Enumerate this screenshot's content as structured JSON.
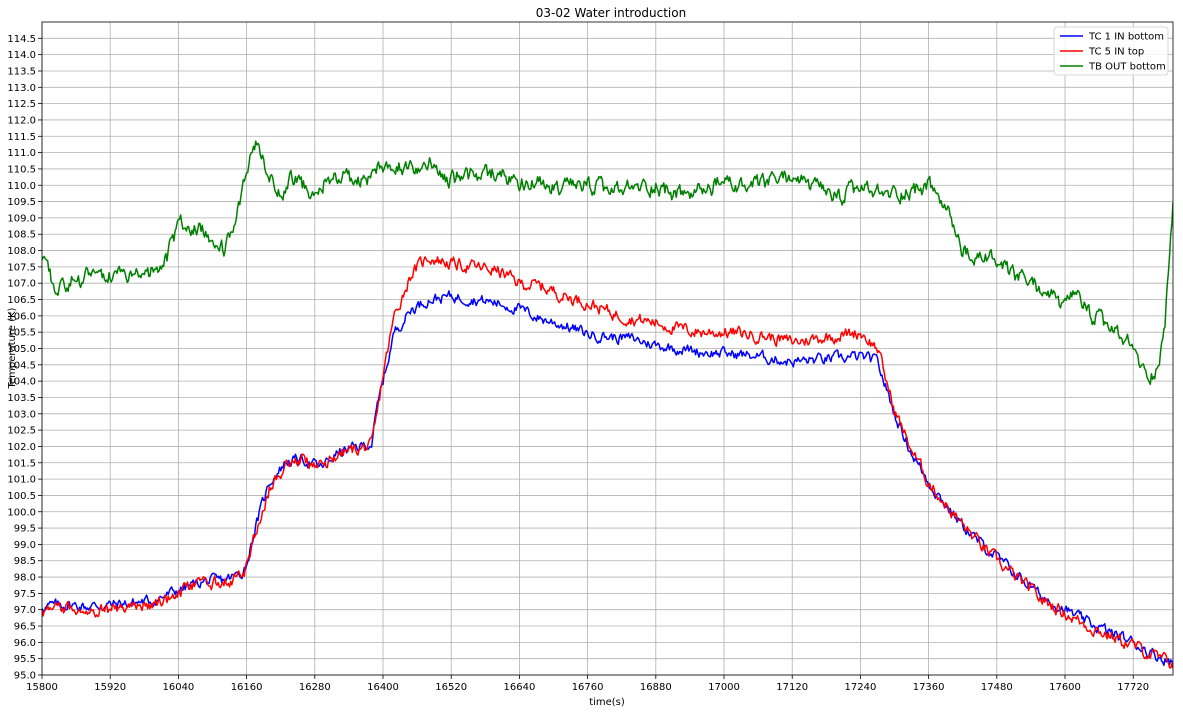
{
  "chart_data": {
    "type": "line",
    "title": "03-02 Water introduction",
    "xlabel": "time(s)",
    "ylabel": "Temperature (K)",
    "xlim": [
      15800,
      17790
    ],
    "ylim": [
      95.0,
      115.0
    ],
    "xticks": [
      15800,
      15920,
      16040,
      16160,
      16280,
      16400,
      16520,
      16640,
      16760,
      16880,
      17000,
      17120,
      17240,
      17360,
      17480,
      17600,
      17720
    ],
    "yticks": [
      95.0,
      95.5,
      96.0,
      96.5,
      97.0,
      97.5,
      98.0,
      98.5,
      99.0,
      99.5,
      100.0,
      100.5,
      101.0,
      101.5,
      102.0,
      102.5,
      103.0,
      103.5,
      104.0,
      104.5,
      105.0,
      105.5,
      106.0,
      106.5,
      107.0,
      107.5,
      108.0,
      108.5,
      109.0,
      109.5,
      110.0,
      110.5,
      111.0,
      111.5,
      112.0,
      112.5,
      113.0,
      113.5,
      114.0,
      114.5
    ],
    "grid": true,
    "legend_position": "top-right",
    "series": [
      {
        "name": "TC 1 IN bottom",
        "color": "#0000ff",
        "x": [
          15800,
          15840,
          15880,
          15920,
          15960,
          16000,
          16040,
          16080,
          16120,
          16150,
          16160,
          16175,
          16200,
          16230,
          16260,
          16290,
          16320,
          16350,
          16380,
          16390,
          16400,
          16420,
          16450,
          16480,
          16520,
          16560,
          16600,
          16640,
          16680,
          16720,
          16760,
          16800,
          16840,
          16880,
          16920,
          16960,
          17000,
          17040,
          17080,
          17120,
          17160,
          17200,
          17240,
          17270,
          17300,
          17330,
          17360,
          17400,
          17440,
          17480,
          17520,
          17560,
          17600,
          17640,
          17680,
          17720,
          17760,
          17790
        ],
        "y": [
          97.1,
          97.15,
          97.1,
          97.15,
          97.2,
          97.3,
          97.6,
          97.85,
          97.9,
          98.1,
          98.4,
          99.5,
          100.9,
          101.55,
          101.6,
          101.35,
          101.8,
          101.95,
          102.1,
          103.2,
          104.0,
          105.5,
          106.2,
          106.5,
          106.6,
          106.5,
          106.4,
          106.2,
          105.9,
          105.7,
          105.45,
          105.35,
          105.3,
          105.1,
          105.0,
          104.9,
          104.85,
          104.8,
          104.7,
          104.6,
          104.65,
          104.7,
          104.75,
          104.6,
          103.0,
          101.8,
          100.9,
          100.0,
          99.2,
          98.6,
          98.0,
          97.4,
          97.0,
          96.6,
          96.3,
          96.0,
          95.6,
          95.4
        ]
      },
      {
        "name": "TC 5 IN top",
        "color": "#ff0000",
        "x": [
          15800,
          15840,
          15880,
          15920,
          15960,
          16000,
          16040,
          16080,
          16120,
          16150,
          16160,
          16175,
          16200,
          16230,
          16260,
          16290,
          16320,
          16350,
          16380,
          16390,
          16400,
          16420,
          16450,
          16480,
          16520,
          16560,
          16600,
          16640,
          16680,
          16720,
          16760,
          16800,
          16840,
          16880,
          16920,
          16960,
          17000,
          17040,
          17080,
          17120,
          17160,
          17200,
          17240,
          17270,
          17300,
          17330,
          17360,
          17400,
          17440,
          17480,
          17520,
          17560,
          17600,
          17640,
          17680,
          17720,
          17760,
          17790
        ],
        "y": [
          96.95,
          97.05,
          97.05,
          97.0,
          97.1,
          97.2,
          97.5,
          97.8,
          97.85,
          98.0,
          98.3,
          99.3,
          100.7,
          101.5,
          101.6,
          101.35,
          101.75,
          101.9,
          102.0,
          103.0,
          104.2,
          106.0,
          107.3,
          107.8,
          107.6,
          107.5,
          107.4,
          107.0,
          106.9,
          106.6,
          106.4,
          106.1,
          105.9,
          105.8,
          105.6,
          105.5,
          105.5,
          105.45,
          105.35,
          105.2,
          105.3,
          105.4,
          105.5,
          105.0,
          103.1,
          101.9,
          100.9,
          100.0,
          99.2,
          98.5,
          97.9,
          97.3,
          96.9,
          96.5,
          96.2,
          95.9,
          95.55,
          95.35
        ]
      },
      {
        "name": "TB OUT bottom",
        "color": "#008000",
        "x": [
          15800,
          15820,
          15860,
          15900,
          15940,
          15980,
          16020,
          16040,
          16070,
          16100,
          16120,
          16140,
          16160,
          16175,
          16200,
          16220,
          16240,
          16260,
          16280,
          16300,
          16330,
          16360,
          16380,
          16400,
          16440,
          16480,
          16520,
          16560,
          16600,
          16640,
          16680,
          16720,
          16760,
          16800,
          16840,
          16880,
          16920,
          16960,
          17000,
          17040,
          17080,
          17120,
          17160,
          17200,
          17240,
          17280,
          17320,
          17360,
          17380,
          17400,
          17420,
          17440,
          17460,
          17480,
          17500,
          17540,
          17580,
          17600,
          17620,
          17640,
          17680,
          17720,
          17740,
          17760,
          17775,
          17790
        ],
        "y": [
          107.6,
          106.9,
          107.1,
          107.2,
          107.2,
          107.2,
          107.8,
          108.8,
          108.8,
          108.4,
          108.0,
          108.7,
          110.3,
          111.2,
          110.2,
          109.8,
          110.2,
          110.0,
          109.8,
          110.2,
          110.4,
          110.0,
          110.3,
          110.6,
          110.6,
          110.7,
          110.2,
          110.3,
          110.4,
          110.1,
          110.0,
          109.9,
          110.0,
          109.8,
          109.9,
          110.0,
          109.7,
          109.8,
          110.1,
          109.9,
          110.1,
          110.3,
          109.9,
          109.6,
          109.9,
          109.7,
          109.8,
          110.0,
          109.6,
          108.9,
          108.0,
          107.6,
          107.9,
          107.6,
          107.3,
          107.0,
          106.6,
          106.2,
          106.7,
          106.1,
          105.6,
          105.0,
          104.2,
          104.3,
          105.5,
          109.6
        ]
      }
    ]
  }
}
